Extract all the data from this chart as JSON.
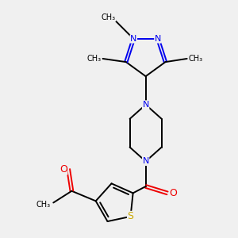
{
  "bg_color": "#f0f0f0",
  "bond_color": "#000000",
  "N_color": "#0000ee",
  "O_color": "#ee0000",
  "S_color": "#ccaa00",
  "bond_width": 1.4,
  "font_size": 8,
  "fig_size": [
    3.0,
    3.0
  ],
  "dpi": 100,
  "xlim": [
    -2.5,
    4.5
  ],
  "ylim": [
    -3.5,
    3.5
  ]
}
